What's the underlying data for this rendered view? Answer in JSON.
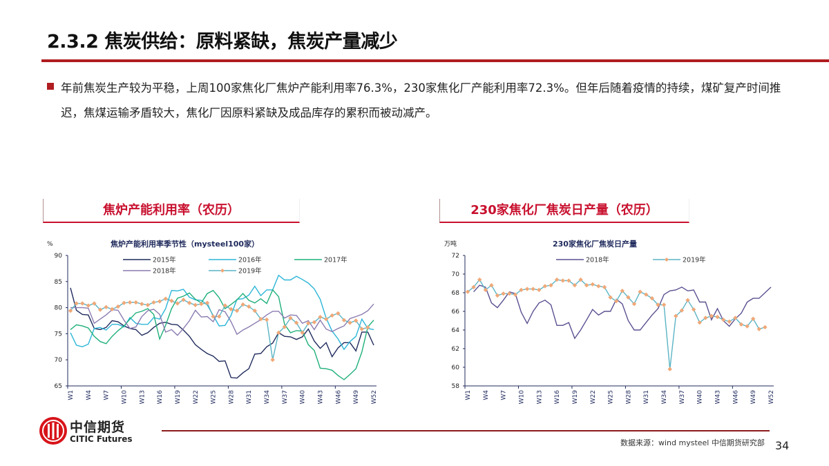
{
  "title": "2.3.2 焦炭供给：原料紧缺，焦炭产量减少",
  "paragraph": "年前焦炭生产较为平稳，上周100家焦化厂焦炉产能利用率76.3%，230家焦化厂产能利用率72.3%。但年后随着疫情的持续，煤矿复产时间推迟，焦煤运输矛盾较大，焦化厂因原料紧缺及成品库存的累积而被动减产。",
  "sections": {
    "left": "焦炉产能利用率（农历）",
    "right": "230家焦化厂焦炭日产量（农历）"
  },
  "logo": {
    "cn": "中信期货",
    "en": "CITIC Futures"
  },
  "footer": {
    "source": "数据来源：wind  mysteel  中信期货研究部",
    "page": "34"
  },
  "colors": {
    "accent": "#b01c1f",
    "s2015": "#1f2a5c",
    "s2016": "#2bb5d8",
    "s2017": "#1fb07a",
    "s2018": "#8a7bb0",
    "s2019_line": "#5ab4c4",
    "s2019_marker": "#f0a878",
    "r2018": "#5a5090"
  },
  "chart_data": [
    {
      "type": "line",
      "title": "焦炉产能利用率季节性（mysteel100家）",
      "ylabel": "%",
      "ylim": [
        65,
        90
      ],
      "yticks": [
        65,
        70,
        75,
        80,
        85,
        90
      ],
      "xticks": [
        "W1",
        "W4",
        "W7",
        "W10",
        "W13",
        "W16",
        "W19",
        "W22",
        "W25",
        "W28",
        "W31",
        "W34",
        "W37",
        "W40",
        "W43",
        "W46",
        "W49",
        "W52"
      ],
      "legend": "top",
      "series": [
        {
          "name": "2015年",
          "values": [
            83.8,
            79.5,
            78.7,
            78.6,
            76,
            75.8,
            76.2,
            77.5,
            77.3,
            76.5,
            76,
            75.8,
            74.7,
            75.2,
            76.2,
            77,
            77.2,
            76.8,
            76.7,
            75.7,
            74.5,
            72.9,
            72,
            71.2,
            70.7,
            69.7,
            69.8,
            66.6,
            66.5,
            67.5,
            68.3,
            71.1,
            71.2,
            72.5,
            73.2,
            75.2,
            74.5,
            74.4,
            73.9,
            74.4,
            75.9,
            73.6,
            72.2,
            73.3,
            70.6,
            72.3,
            73.3,
            73.3,
            71.7,
            75.3,
            75.3,
            72.8
          ]
        },
        {
          "name": "2016年",
          "values": [
            75.2,
            72.8,
            72.5,
            73,
            76,
            76.2,
            75.7,
            76.8,
            76.8,
            76.3,
            78.1,
            77,
            76.8,
            76.8,
            78.1,
            77.8,
            79.8,
            83.3,
            83.2,
            83.5,
            82,
            81.5,
            81.4,
            80.5,
            78.5,
            76.5,
            76.6,
            78.5,
            81.6,
            81.7,
            82.4,
            84.1,
            82.3,
            83.4,
            83.4,
            86.2,
            85.3,
            85.3,
            86,
            85.4,
            84.7,
            83.6,
            81.6,
            78,
            75.5,
            74,
            72,
            73.5,
            74.5,
            77.8,
            76,
            75.8
          ]
        },
        {
          "name": "2017年",
          "values": [
            75.8,
            76.7,
            76.5,
            76.1,
            74.5,
            73.5,
            73.1,
            74.5,
            75.6,
            76.5,
            77.8,
            79,
            79.3,
            79.8,
            78.7,
            74,
            76.6,
            79.8,
            81.8,
            82.2,
            82.8,
            81.6,
            80.9,
            82.7,
            83.3,
            81.9,
            79.8,
            80.6,
            81.5,
            82.7,
            81.4,
            80.9,
            81.7,
            80.8,
            83.4,
            82.1,
            76.8,
            75.2,
            75.6,
            75.5,
            72.9,
            71.8,
            68.4,
            68.3,
            68,
            67,
            66.2,
            67.2,
            68.3,
            71.5,
            76.3,
            77.6
          ]
        },
        {
          "name": "2018年",
          "values": [
            80,
            80,
            80,
            79.9,
            77,
            77.8,
            78.6,
            79.6,
            79.5,
            77.6,
            76,
            76.3,
            78.3,
            79.4,
            79.7,
            78.7,
            75.3,
            75.8,
            74.7,
            76,
            77.5,
            79.5,
            78.2,
            78.3,
            77.3,
            79.6,
            79.2,
            77.3,
            74.9,
            75.7,
            76.3,
            77,
            77.7,
            78.6,
            79.3,
            79.3,
            78,
            78.6,
            78.5,
            77,
            77.5,
            75.8,
            77.6,
            75.9,
            75.4,
            76,
            76.5,
            77.9,
            78.3,
            78.7,
            79.4,
            80.7
          ]
        },
        {
          "name": "2019年",
          "values": [
            79.4,
            80.8,
            80.8,
            80.4,
            80.8,
            79.6,
            80.1,
            79.7,
            80.2,
            80.9,
            81,
            81,
            80.7,
            80.5,
            81,
            81.2,
            81.7,
            81.3,
            80.8,
            81.5,
            80.9,
            80.5,
            80.7,
            80.9,
            78.3,
            78.3,
            80.4,
            79.7,
            79.4,
            80.6,
            80.2,
            79.4,
            77.8,
            77.7,
            70,
            75.2,
            76.3,
            78,
            77.1,
            75.2,
            77,
            77.2,
            78.2,
            77.8,
            78.5,
            78.9,
            77.6,
            77.1,
            77.5,
            75.9,
            76.2
          ]
        }
      ]
    },
    {
      "type": "line",
      "title": "230家焦化厂焦炭日产量",
      "ylabel": "万吨",
      "ylim": [
        58,
        72
      ],
      "yticks": [
        58,
        60,
        62,
        64,
        66,
        68,
        70,
        72
      ],
      "xticks": [
        "W1",
        "W4",
        "W7",
        "W10",
        "W13",
        "W16",
        "W19",
        "W22",
        "W25",
        "W28",
        "W31",
        "W34",
        "W37",
        "W40",
        "W43",
        "W46",
        "W49",
        "W52"
      ],
      "legend": "top",
      "series": [
        {
          "name": "2018年",
          "values": [
            null,
            68.1,
            68.8,
            68.6,
            66.9,
            66.4,
            67.2,
            68.1,
            67.9,
            65.9,
            64.7,
            66.0,
            66.9,
            67.2,
            66.7,
            64.5,
            64.5,
            64.8,
            63.1,
            64.0,
            65.1,
            66.2,
            65.6,
            66.0,
            66.0,
            67.3,
            66.8,
            65.0,
            64.0,
            64.0,
            64.8,
            65.6,
            66.3,
            67.8,
            68.2,
            68.3,
            68.6,
            68.2,
            68.3,
            67.0,
            67.0,
            65.1,
            66.3,
            65.0,
            64.4,
            65.2,
            65.8,
            67.0,
            67.4,
            67.4,
            68.0,
            68.6
          ]
        },
        {
          "name": "2019年",
          "values": [
            68.1,
            68.6,
            69.4,
            68.3,
            68.8,
            67.7,
            67.9,
            67.9,
            67.8,
            68.3,
            68.4,
            68.4,
            68.3,
            68.7,
            68.8,
            69.4,
            69.3,
            69.3,
            68.8,
            69.4,
            68.8,
            68.9,
            68.7,
            68.6,
            67.5,
            67.1,
            68.2,
            67.5,
            66.8,
            68.1,
            67.8,
            67.4,
            66.7,
            66.7,
            59.8,
            65.5,
            66.1,
            67.2,
            66.2,
            64.8,
            65.3,
            65.5,
            65.4,
            65.1,
            64.9,
            65.3,
            64.6,
            64.4,
            65.2,
            64.1,
            64.3
          ]
        }
      ]
    }
  ]
}
